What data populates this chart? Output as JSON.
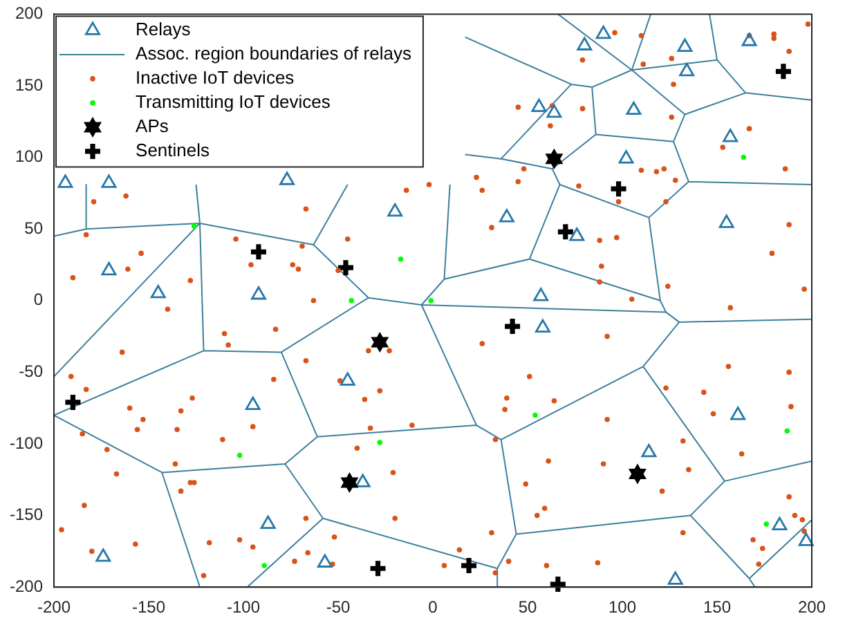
{
  "chart_data": {
    "type": "scatter",
    "xlim": [
      -200,
      200
    ],
    "ylim": [
      -200,
      200
    ],
    "xticks": [
      -200,
      -150,
      -100,
      -50,
      0,
      50,
      100,
      150,
      200
    ],
    "yticks": [
      -200,
      -150,
      -100,
      -50,
      0,
      50,
      100,
      150,
      200
    ],
    "legend": "top left",
    "series": [
      {
        "name": "Relays",
        "type": "scatter",
        "marker": "triangle",
        "color": "#2577a9",
        "x": [
          -194,
          -171,
          -77,
          -20,
          -171,
          -145,
          -92,
          90,
          80,
          133,
          167,
          134,
          56,
          64,
          106,
          157,
          102,
          39,
          76,
          155,
          57,
          58,
          161,
          114,
          183,
          197,
          128,
          -45,
          -95,
          -37,
          -87,
          -174,
          -57
        ],
        "values": [
          82,
          82,
          84,
          62,
          21,
          5,
          4,
          186,
          178,
          177,
          181,
          160,
          135,
          131,
          133,
          114,
          99,
          58,
          45,
          54,
          3,
          -19,
          -80,
          -106,
          -157,
          -168,
          -195,
          -56,
          -73,
          -127,
          -156,
          -179,
          -183
        ]
      },
      {
        "name": "Assoc. region boundaries of relays",
        "type": "line",
        "marker": "none",
        "color": "#3d7f9c",
        "x": [
          17,
          73,
          84,
          105,
          115,
          null,
          66,
          105,
          null,
          105,
          150,
          146,
          null,
          105,
          133,
          165,
          200,
          null,
          165,
          150,
          null,
          73,
          36,
          17,
          null,
          84,
          86,
          127,
          133,
          null,
          86,
          63,
          36,
          null,
          63,
          67,
          114,
          135,
          127,
          null,
          135,
          200,
          null,
          67,
          51,
          6,
          9,
          null,
          6,
          -6,
          123,
          130,
          200,
          null,
          51,
          120,
          null,
          114,
          120,
          123,
          null,
          130,
          111,
          36,
          23,
          -6,
          null,
          36,
          44,
          136,
          154,
          111,
          null,
          154,
          200,
          null,
          136,
          167,
          170,
          null,
          167,
          200,
          null,
          44,
          34,
          34,
          null,
          -58,
          34,
          null,
          -61,
          23,
          null,
          -183,
          -183,
          -200,
          null,
          -183,
          -123,
          null,
          -125,
          -123,
          -63,
          -45,
          null,
          -63,
          -34,
          -6,
          null,
          -123,
          -121,
          null,
          -123,
          -200,
          null,
          -200,
          -121,
          -80,
          -34,
          null,
          -200,
          -143,
          -78,
          -61,
          -80,
          null,
          -143,
          -123,
          null,
          -78,
          -58,
          -98
        ],
        "values": [
          184,
          151,
          149,
          161,
          200,
          null,
          200,
          161,
          null,
          161,
          168,
          200,
          null,
          161,
          130,
          145,
          140,
          null,
          145,
          168,
          null,
          151,
          99,
          102,
          null,
          149,
          116,
          111,
          130,
          null,
          116,
          92,
          99,
          null,
          92,
          81,
          58,
          83,
          111,
          null,
          83,
          81,
          null,
          81,
          29,
          15,
          81,
          null,
          15,
          -3,
          -8,
          -15,
          -13,
          null,
          29,
          0,
          null,
          58,
          0,
          -8,
          null,
          -15,
          -46,
          -97,
          -87,
          -3,
          null,
          -97,
          -163,
          -150,
          -126,
          -46,
          null,
          -126,
          -112,
          null,
          -150,
          -194,
          -200,
          null,
          -194,
          -153,
          null,
          -163,
          -187,
          -200,
          null,
          -152,
          -187,
          null,
          -95,
          -87,
          null,
          81,
          50,
          45,
          null,
          50,
          54,
          null,
          81,
          54,
          39,
          81,
          null,
          39,
          2,
          -3,
          null,
          54,
          -35,
          null,
          54,
          -53,
          null,
          -80,
          -35,
          -36,
          2,
          null,
          -80,
          -120,
          -114,
          -95,
          -36,
          null,
          -120,
          -200,
          null,
          -114,
          -152,
          -200
        ]
      },
      {
        "name": "Inactive IoT devices",
        "type": "scatter",
        "marker": "circle",
        "color": "#d95319",
        "x": [
          -14,
          -2,
          -179,
          -162,
          -67,
          -183,
          -104,
          -154,
          -45,
          -69,
          -96,
          -74,
          -71,
          -161,
          -190,
          -128,
          -50,
          -63,
          96,
          110,
          79,
          111,
          126,
          127,
          167,
          180,
          180,
          188,
          198,
          45,
          63,
          79,
          62,
          126,
          167,
          153,
          186,
          23,
          26,
          48,
          45,
          77,
          110,
          118,
          122,
          128,
          98,
          123,
          31,
          88,
          97,
          188,
          179,
          89,
          88,
          124,
          105,
          196,
          -140,
          -110,
          -83,
          -108,
          -164,
          -67,
          -34,
          -23,
          -191,
          -84,
          -49,
          -183,
          -127,
          -28,
          -36,
          -160,
          -133,
          -153,
          -156,
          -135,
          -95,
          -185,
          -111,
          -33,
          -11,
          -172,
          -40,
          -136,
          -167,
          -128,
          -126,
          -133,
          -21,
          -184,
          -67,
          -20,
          -196,
          -52,
          -118,
          -102,
          -95,
          -157,
          -180,
          -66,
          -73,
          -53,
          -121,
          157,
          92,
          26,
          51,
          39,
          64,
          38,
          123,
          143,
          156,
          188,
          189,
          148,
          92,
          33,
          132,
          163,
          61,
          90,
          135,
          49,
          121,
          188,
          59,
          55,
          191,
          195,
          31,
          132,
          196,
          169,
          174,
          14,
          172,
          6,
          33,
          40,
          60,
          87
        ],
        "values": [
          77,
          81,
          69,
          73,
          64,
          46,
          43,
          33,
          43,
          38,
          25,
          25,
          22,
          22,
          16,
          14,
          21,
          0,
          187,
          185,
          168,
          165,
          169,
          151,
          185,
          186,
          183,
          174,
          193,
          135,
          136,
          134,
          122,
          128,
          120,
          107,
          92,
          86,
          77,
          92,
          83,
          80,
          91,
          90,
          92,
          84,
          69,
          69,
          51,
          42,
          44,
          53,
          33,
          24,
          13,
          10,
          1,
          8,
          -6,
          -23,
          -20,
          -31,
          -36,
          -42,
          -35,
          -35,
          -53,
          -55,
          -56,
          -62,
          -68,
          -63,
          -69,
          -75,
          -77,
          -83,
          -90,
          -90,
          -88,
          -93,
          -97,
          -89,
          -87,
          -104,
          -103,
          -114,
          -121,
          -127,
          -127,
          -133,
          -120,
          -143,
          -152,
          -152,
          -160,
          -165,
          -169,
          -167,
          -172,
          -170,
          -175,
          -176,
          -182,
          -184,
          -192,
          -5,
          -25,
          -30,
          -53,
          -68,
          -70,
          -76,
          -61,
          -64,
          -46,
          -50,
          -74,
          -79,
          -83,
          -97,
          -98,
          -107,
          -112,
          -114,
          -118,
          -128,
          -133,
          -137,
          -145,
          -150,
          -150,
          -153,
          -162,
          -162,
          -161,
          -167,
          -173,
          -174,
          -184,
          -185,
          -190,
          -182,
          -185,
          -183
        ]
      },
      {
        "name": "Transmitting IoT devices",
        "type": "scatter",
        "marker": "circle",
        "color": "#00ff00",
        "x": [
          -126,
          -17,
          -43,
          -1,
          164,
          -28,
          -102,
          -89,
          54,
          187,
          176
        ],
        "values": [
          52,
          29,
          0,
          0,
          100,
          -99,
          -108,
          -185,
          -80,
          -91,
          -156
        ]
      },
      {
        "name": "APs",
        "type": "scatter",
        "marker": "star",
        "color": "#000000",
        "x": [
          64,
          -28,
          -44,
          108
        ],
        "values": [
          99,
          -29,
          -127,
          -121
        ]
      },
      {
        "name": "Sentinels",
        "type": "scatter",
        "marker": "cross",
        "color": "#000000",
        "x": [
          185,
          98,
          70,
          -92,
          -46,
          42,
          -190,
          -29,
          19,
          66
        ],
        "values": [
          160,
          78,
          48,
          34,
          23,
          -18,
          -71,
          -187,
          -185,
          -198
        ]
      }
    ]
  }
}
